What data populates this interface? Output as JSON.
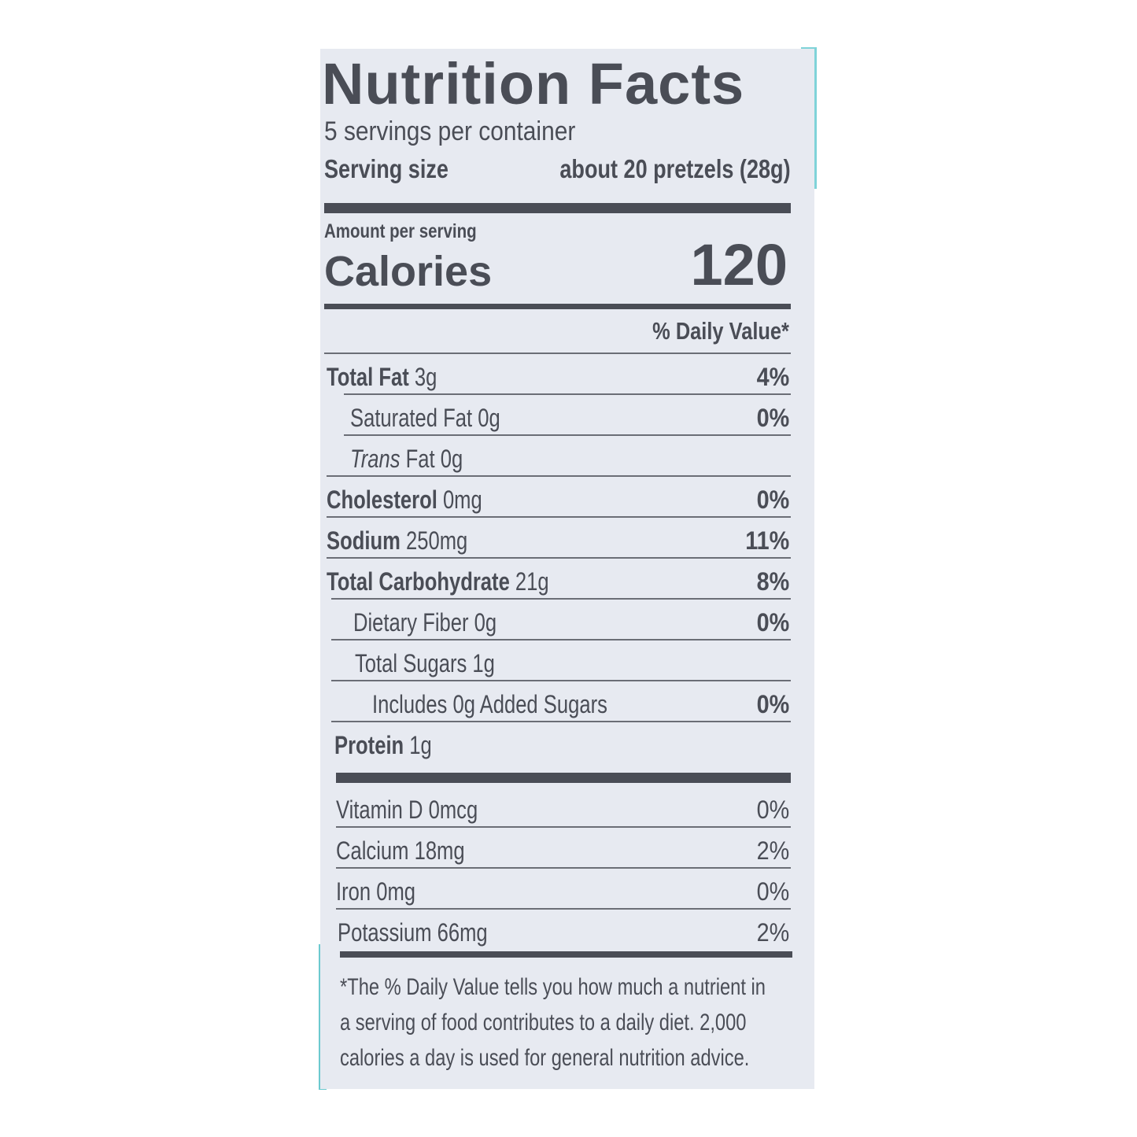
{
  "title": "Nutrition Facts",
  "servings_per_container": "5 servings per container",
  "serving_size": {
    "label": "Serving size",
    "value": "about 20 pretzels (28g)"
  },
  "amount_per_serving": "Amount per serving",
  "calories": {
    "label": "Calories",
    "value": "120"
  },
  "daily_value_header": "% Daily Value*",
  "nutrients": [
    {
      "name": "Total Fat",
      "amount": "3g",
      "dv": "4%"
    },
    {
      "name": "Saturated Fat",
      "amount": "0g",
      "dv": "0%"
    },
    {
      "name": "Trans",
      "amount": "Fat 0g",
      "dv": ""
    },
    {
      "name": "Cholesterol",
      "amount": "0mg",
      "dv": "0%"
    },
    {
      "name": "Sodium",
      "amount": "250mg",
      "dv": "11%"
    },
    {
      "name": "Total Carbohydrate",
      "amount": "21g",
      "dv": "8%"
    },
    {
      "name": "Dietary Fiber",
      "amount": "0g",
      "dv": "0%"
    },
    {
      "name": "Total Sugars",
      "amount": "1g",
      "dv": ""
    },
    {
      "name": "Includes 0g Added Sugars",
      "amount": "",
      "dv": "0%"
    },
    {
      "name": "Protein",
      "amount": "1g",
      "dv": ""
    }
  ],
  "vitamins": [
    {
      "name": "Vitamin D",
      "amount": "0mcg",
      "dv": "0%"
    },
    {
      "name": "Calcium",
      "amount": "18mg",
      "dv": "2%"
    },
    {
      "name": "Iron",
      "amount": "0mg",
      "dv": "0%"
    },
    {
      "name": "Potassium",
      "amount": "66mg",
      "dv": "2%"
    }
  ],
  "footnote": [
    "*The % Daily Value tells you how much a nutrient in",
    "a serving of food contributes to a daily diet. 2,000",
    "calories a day is used for general nutrition advice."
  ],
  "colors": {
    "label_bg": "#e7eaf1",
    "ink": "#4a4d56",
    "package_teal": "#7fd3d8"
  }
}
